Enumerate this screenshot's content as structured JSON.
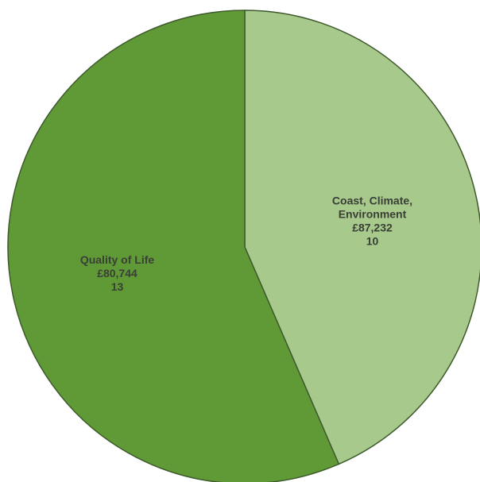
{
  "chart_data": {
    "type": "pie",
    "title": "",
    "slices": [
      {
        "name": "Coast, Climate, Environment",
        "label_lines": [
          "Coast, Climate,",
          "Environment",
          "£87,232",
          "10"
        ],
        "amount": 87232,
        "amount_label": "£87,232",
        "count": 10,
        "share": 0.435,
        "color": "#a7c98c"
      },
      {
        "name": "Quality of Life",
        "label_lines": [
          "Quality of Life",
          "£80,744",
          "13"
        ],
        "amount": 80744,
        "amount_label": "£80,744",
        "count": 13,
        "share": 0.565,
        "color": "#5f9a36"
      }
    ],
    "start": "top",
    "direction": "clockwise",
    "legend": "none"
  }
}
